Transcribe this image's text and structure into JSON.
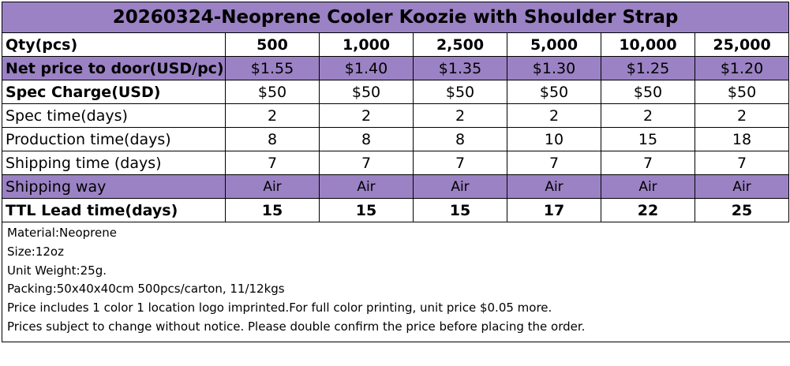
{
  "title": "20260324-Neoprene Cooler Koozie with Shoulder Strap",
  "header": {
    "label": "Qty(pcs)",
    "quantities": [
      "500",
      "1,000",
      "2,500",
      "5,000",
      "10,000",
      "25,000"
    ]
  },
  "rows": [
    {
      "label": "Net price to door(USD/pc)",
      "values": [
        "$1.55",
        "$1.40",
        "$1.35",
        "$1.30",
        "$1.25",
        "$1.20"
      ]
    },
    {
      "label": "Spec Charge(USD)",
      "values": [
        "$50",
        "$50",
        "$50",
        "$50",
        "$50",
        "$50"
      ]
    },
    {
      "label": "Spec time(days)",
      "values": [
        "2",
        "2",
        "2",
        "2",
        "2",
        "2"
      ]
    },
    {
      "label": "Production time(days)",
      "values": [
        "8",
        "8",
        "8",
        "10",
        "15",
        "18"
      ]
    },
    {
      "label": "Shipping time (days)",
      "values": [
        "7",
        "7",
        "7",
        "7",
        "7",
        "7"
      ]
    },
    {
      "label": "Shipping way",
      "values": [
        "Air",
        "Air",
        "Air",
        "Air",
        "Air",
        "Air"
      ]
    },
    {
      "label": "TTL Lead time(days)",
      "values": [
        "15",
        "15",
        "15",
        "17",
        "22",
        "25"
      ]
    }
  ],
  "notes": [
    "Material:Neoprene",
    "Size:12oz",
    "Unit Weight:25g.",
    "Packing:50x40x40cm 500pcs/carton, 11/12kgs",
    "Price includes 1 color 1 location logo imprinted.For full color printing, unit price $0.05 more.",
    "Prices subject to change without notice. Please double confirm the price before placing the order."
  ],
  "colors": {
    "header_band": "#9b82c4",
    "border": "#000000"
  }
}
